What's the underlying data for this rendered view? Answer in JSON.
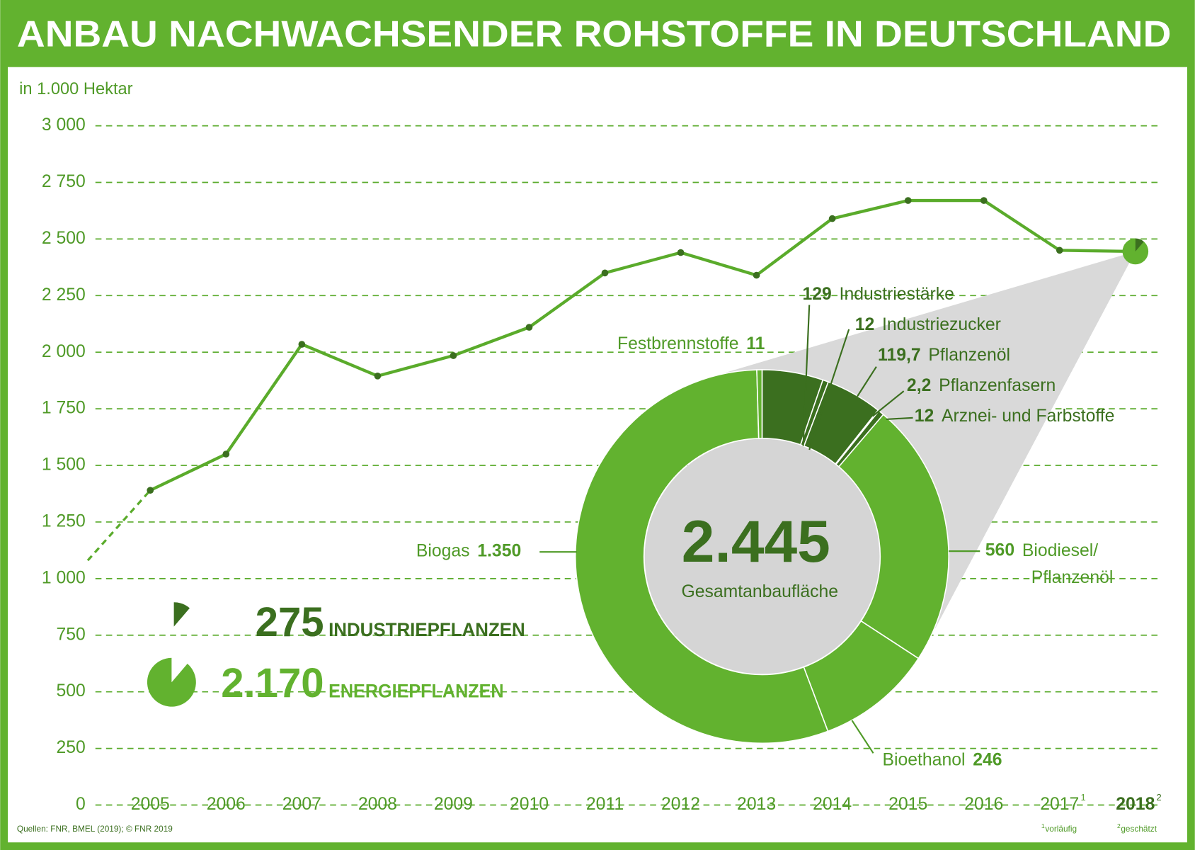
{
  "chart_data": [
    {
      "type": "line",
      "title": "ANBAU NACHWACHSENDER ROHSTOFFE IN DEUTSCHLAND",
      "y_label": "in 1.000 Hektar",
      "source": "Quellen: FNR, BMEL (2019); © FNR 2019",
      "categories": [
        "2005",
        "2006",
        "2007",
        "2008",
        "2009",
        "2010",
        "2011",
        "2012",
        "2013",
        "2014",
        "2015",
        "2016",
        "2017",
        "2018"
      ],
      "values": [
        1390,
        1550,
        2035,
        1895,
        1985,
        2110,
        2350,
        2440,
        2340,
        2590,
        2670,
        2670,
        2450,
        2445
      ],
      "color": "#5aab2b",
      "ylim": [
        0,
        3000
      ],
      "yticks": [
        0,
        250,
        500,
        750,
        {
          "value": 1000,
          "label": "1 000"
        },
        {
          "value": 1250,
          "label": "1 250"
        },
        {
          "value": 1500,
          "label": "1 500"
        },
        {
          "value": 1750,
          "label": "1 750"
        },
        {
          "value": 2000,
          "label": "2 000"
        },
        {
          "value": 2250,
          "label": "2 250"
        },
        {
          "value": 2500,
          "label": "2 500"
        },
        {
          "value": 2750,
          "label": "2 750"
        },
        {
          "value": 3000,
          "label": "3 000"
        }
      ],
      "grid": true,
      "footnotes": [
        {
          "marker": "1",
          "text": "vorläufig"
        },
        {
          "marker": "2",
          "text": "geschätzt"
        }
      ]
    },
    {
      "type": "donut",
      "center_value": 2445,
      "center_value_label": "2.445",
      "center_label": "Gesamtanbaufläche",
      "categories": [
        "Industriestärke",
        "Industriezucker",
        "Pflanzenöl",
        "Pflanzenfasern",
        "Arznei- und Farbstoffe",
        "Biodiesel/Pflanzenöl",
        "Bioethanol",
        "Biogas",
        "Festbrennstoffe"
      ],
      "values": [
        129,
        12,
        119.7,
        2.2,
        12,
        560,
        246,
        1350,
        11
      ],
      "value_labels": [
        "129",
        "12",
        "119,7",
        "2,2",
        "12",
        "560",
        "246",
        "1.350",
        "11"
      ],
      "colors": [
        "#3b6f1f",
        "#3b6f1f",
        "#3b6f1f",
        "#3b6f1f",
        "#3b6f1f",
        "#62b22f",
        "#62b22f",
        "#62b22f",
        "#62b22f"
      ],
      "groups": [
        {
          "name": "INDUSTRIEPFLANZEN",
          "value": 275,
          "value_label": "275",
          "color": "#3b6f1f"
        },
        {
          "name": "ENERGIEPFLANZEN",
          "value": 2170,
          "value_label": "2.170",
          "color": "#62b22f"
        }
      ]
    }
  ]
}
